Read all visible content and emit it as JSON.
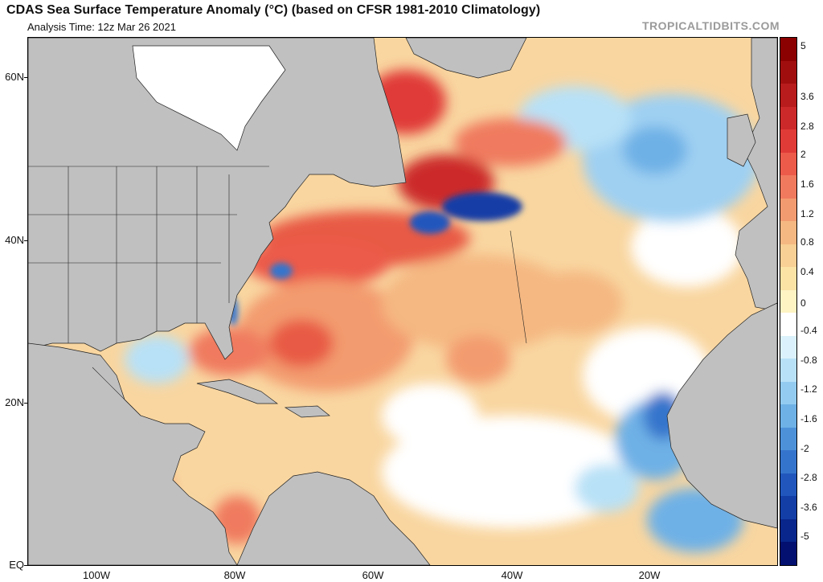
{
  "title": "CDAS Sea Surface Temperature Anomaly (°C) (based on CFSR 1981-2010 Climatology)",
  "subtitle": "Analysis Time: 12z Mar 26 2021",
  "credit": "TROPICALTIDBITS.COM",
  "axes": {
    "lat_labels": [
      "60N",
      "40N",
      "20N",
      "EQ"
    ],
    "lon_labels": [
      "100W",
      "80W",
      "60W",
      "40W",
      "20W"
    ]
  },
  "colorbar": {
    "labels": [
      "5",
      "3.6",
      "2.8",
      "2",
      "1.6",
      "1.2",
      "0.8",
      "0.4",
      "0",
      "-0.4",
      "-0.8",
      "-1.2",
      "-1.6",
      "-2",
      "-2.8",
      "-3.6",
      "-5"
    ],
    "colors": [
      "#8b0000",
      "#a10e0e",
      "#b81c1c",
      "#cc2a2a",
      "#e03b37",
      "#ec5a4a",
      "#f07a5e",
      "#f39b70",
      "#f5b882",
      "#f8cf94",
      "#fae3a5",
      "#fdf3c3",
      "#ffffff",
      "#dbf1fb",
      "#b8e1f7",
      "#93cbf0",
      "#6eb1e6",
      "#4d92d9",
      "#3574cc",
      "#2157bd",
      "#123ea6",
      "#08268b",
      "#031070"
    ]
  },
  "colors": {
    "land": "#c0c0c0",
    "ice": "#ffffff",
    "ocean_base": "#f9d6a0"
  }
}
